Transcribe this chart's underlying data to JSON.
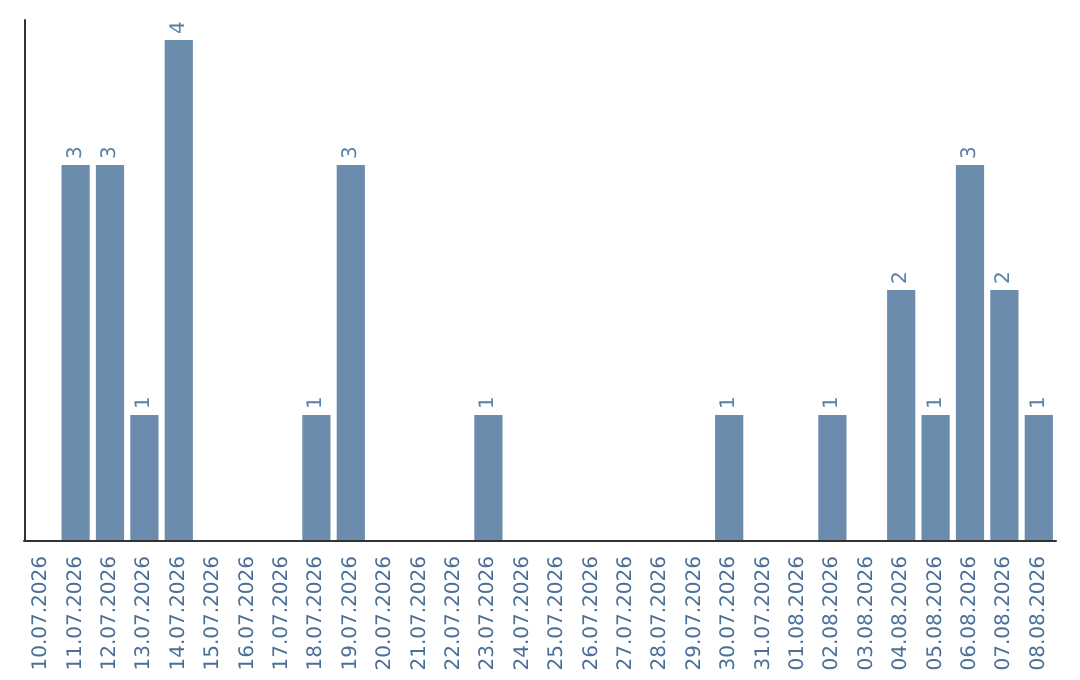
{
  "chart_data": {
    "type": "bar",
    "categories": [
      "10.07.2026",
      "11.07.2026",
      "12.07.2026",
      "13.07.2026",
      "14.07.2026",
      "15.07.2026",
      "16.07.2026",
      "17.07.2026",
      "18.07.2026",
      "19.07.2026",
      "20.07.2026",
      "21.07.2026",
      "22.07.2026",
      "23.07.2026",
      "24.07.2026",
      "25.07.2026",
      "26.07.2026",
      "27.07.2026",
      "28.07.2026",
      "29.07.2026",
      "30.07.2026",
      "31.07.2026",
      "01.08.2026",
      "02.08.2026",
      "03.08.2026",
      "04.08.2026",
      "05.08.2026",
      "06.08.2026",
      "07.08.2026",
      "08.08.2026"
    ],
    "values": [
      0,
      3,
      3,
      1,
      4,
      0,
      0,
      0,
      1,
      3,
      0,
      0,
      0,
      1,
      0,
      0,
      0,
      0,
      0,
      0,
      1,
      0,
      0,
      1,
      0,
      2,
      1,
      3,
      2,
      1
    ],
    "value_labels": [
      null,
      "3",
      "3",
      "1",
      "4",
      null,
      null,
      null,
      "1",
      "3",
      null,
      null,
      null,
      "1",
      null,
      null,
      null,
      null,
      null,
      null,
      "1",
      null,
      null,
      "1",
      null,
      "2",
      "1",
      "3",
      "2",
      "1"
    ],
    "color": "#6b8cad",
    "tick_labels": "x"
  }
}
